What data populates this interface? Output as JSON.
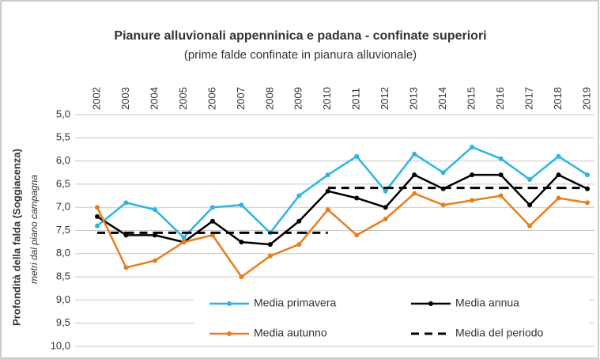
{
  "chart_data": {
    "type": "line",
    "title": "Pianure alluvionali  appenninica e padana - confinate superiori",
    "subtitle": "(prime falde confinate in pianura alluvionale)",
    "y_label": "Profondità della falda (Soggiacenza)",
    "y_sublabel": "metri dal piano campagna",
    "categories": [
      "2002",
      "2003",
      "2004",
      "2005",
      "2006",
      "2007",
      "2008",
      "2009",
      "2010",
      "2011",
      "2012",
      "2013",
      "2014",
      "2015",
      "2016",
      "2017",
      "2018",
      "2019"
    ],
    "ylim": [
      5,
      10
    ],
    "y_inverted": true,
    "yticks": [
      {
        "value": 5,
        "label": "5,0"
      },
      {
        "value": 5.5,
        "label": "5,5"
      },
      {
        "value": 6,
        "label": "6,0"
      },
      {
        "value": 6.5,
        "label": "6,5"
      },
      {
        "value": 7,
        "label": "7,0"
      },
      {
        "value": 7.5,
        "label": "7,5"
      },
      {
        "value": 8,
        "label": "8,0"
      },
      {
        "value": 8.5,
        "label": "8,5"
      },
      {
        "value": 9,
        "label": "9,0"
      },
      {
        "value": 9.5,
        "label": "9,5"
      },
      {
        "value": 10,
        "label": "10,0"
      }
    ],
    "grid": true,
    "series": [
      {
        "name": "Media primavera",
        "color": "#2cb5e0",
        "style": "marker",
        "values": [
          7.4,
          6.9,
          7.05,
          7.65,
          7.0,
          6.95,
          7.55,
          6.75,
          6.3,
          5.9,
          6.65,
          5.85,
          6.25,
          5.7,
          5.95,
          6.4,
          5.9,
          6.3
        ]
      },
      {
        "name": "Media annua",
        "color": "#000000",
        "style": "marker",
        "values": [
          7.2,
          7.6,
          7.6,
          7.75,
          7.3,
          7.75,
          7.8,
          7.3,
          6.65,
          6.8,
          7.0,
          6.3,
          6.6,
          6.3,
          6.3,
          6.95,
          6.3,
          6.6
        ]
      },
      {
        "name": "Media autunno",
        "color": "#e87d1e",
        "style": "marker",
        "values": [
          7.0,
          8.3,
          8.15,
          7.75,
          7.6,
          8.5,
          8.05,
          7.8,
          7.05,
          7.6,
          7.25,
          6.7,
          6.95,
          6.85,
          6.75,
          7.4,
          6.8,
          6.9
        ]
      },
      {
        "name": "Media del periodo",
        "color": "#000000",
        "style": "dashed-step",
        "values": [
          7.55,
          7.55,
          7.55,
          7.55,
          7.55,
          7.55,
          7.55,
          7.55,
          6.58,
          6.58,
          6.58,
          6.58,
          6.58,
          6.58,
          6.58,
          6.58,
          6.58,
          6.58
        ]
      }
    ]
  }
}
